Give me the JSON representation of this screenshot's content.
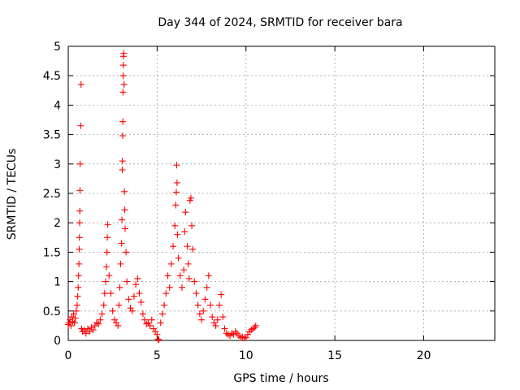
{
  "chart_data": {
    "type": "scatter",
    "title": "Day 344 of 2024, SRMTID for receiver bara",
    "xlabel": "GPS time / hours",
    "ylabel": "SRMTID / TECUs",
    "xlim": [
      0,
      24
    ],
    "ylim": [
      0,
      5
    ],
    "x_ticks": [
      0,
      5,
      10,
      15,
      20
    ],
    "y_ticks": [
      0,
      0.5,
      1,
      1.5,
      2,
      2.5,
      3,
      3.5,
      4,
      4.5,
      5
    ],
    "grid": true,
    "marker": "plus",
    "series": [
      {
        "name": "SRMTID",
        "color": "#ff0000",
        "points": [
          [
            0.0,
            0.27
          ],
          [
            0.05,
            0.3
          ],
          [
            0.1,
            0.35
          ],
          [
            0.15,
            0.25
          ],
          [
            0.2,
            0.4
          ],
          [
            0.25,
            0.32
          ],
          [
            0.3,
            0.45
          ],
          [
            0.35,
            0.3
          ],
          [
            0.4,
            0.38
          ],
          [
            0.45,
            0.5
          ],
          [
            0.5,
            0.6
          ],
          [
            0.53,
            0.75
          ],
          [
            0.56,
            0.9
          ],
          [
            0.58,
            1.1
          ],
          [
            0.6,
            1.3
          ],
          [
            0.62,
            1.55
          ],
          [
            0.63,
            1.75
          ],
          [
            0.64,
            2.0
          ],
          [
            0.65,
            2.2
          ],
          [
            0.66,
            2.55
          ],
          [
            0.67,
            3.0
          ],
          [
            0.7,
            3.65
          ],
          [
            0.72,
            4.35
          ],
          [
            0.75,
            0.2
          ],
          [
            0.8,
            0.15
          ],
          [
            0.9,
            0.18
          ],
          [
            1.0,
            0.12
          ],
          [
            1.1,
            0.2
          ],
          [
            1.2,
            0.15
          ],
          [
            1.3,
            0.22
          ],
          [
            1.4,
            0.18
          ],
          [
            1.5,
            0.25
          ],
          [
            1.6,
            0.3
          ],
          [
            1.7,
            0.28
          ],
          [
            1.8,
            0.35
          ],
          [
            1.9,
            0.45
          ],
          [
            2.0,
            0.6
          ],
          [
            2.05,
            0.8
          ],
          [
            2.1,
            1.0
          ],
          [
            2.15,
            1.25
          ],
          [
            2.18,
            1.5
          ],
          [
            2.2,
            1.75
          ],
          [
            2.22,
            1.97
          ],
          [
            2.3,
            1.1
          ],
          [
            2.4,
            0.8
          ],
          [
            2.5,
            0.5
          ],
          [
            2.6,
            0.35
          ],
          [
            2.7,
            0.3
          ],
          [
            2.8,
            0.25
          ],
          [
            2.85,
            0.6
          ],
          [
            2.9,
            0.9
          ],
          [
            2.95,
            1.3
          ],
          [
            3.0,
            1.65
          ],
          [
            3.02,
            2.05
          ],
          [
            3.04,
            2.9
          ],
          [
            3.05,
            3.05
          ],
          [
            3.06,
            3.48
          ],
          [
            3.07,
            3.72
          ],
          [
            3.08,
            4.22
          ],
          [
            3.09,
            4.5
          ],
          [
            3.1,
            4.68
          ],
          [
            3.11,
            4.83
          ],
          [
            3.12,
            4.88
          ],
          [
            3.14,
            4.35
          ],
          [
            3.16,
            2.53
          ],
          [
            3.18,
            2.22
          ],
          [
            3.2,
            1.9
          ],
          [
            3.25,
            1.5
          ],
          [
            3.3,
            1.0
          ],
          [
            3.4,
            0.7
          ],
          [
            3.5,
            0.55
          ],
          [
            3.6,
            0.5
          ],
          [
            3.7,
            0.75
          ],
          [
            3.8,
            0.95
          ],
          [
            3.9,
            1.05
          ],
          [
            4.0,
            0.8
          ],
          [
            4.1,
            0.65
          ],
          [
            4.2,
            0.45
          ],
          [
            4.3,
            0.35
          ],
          [
            4.4,
            0.28
          ],
          [
            4.5,
            0.3
          ],
          [
            4.6,
            0.25
          ],
          [
            4.7,
            0.35
          ],
          [
            4.8,
            0.2
          ],
          [
            4.9,
            0.15
          ],
          [
            5.0,
            0.1
          ],
          [
            5.05,
            0.02
          ],
          [
            5.1,
            0.01
          ],
          [
            5.2,
            0.3
          ],
          [
            5.3,
            0.45
          ],
          [
            5.4,
            0.6
          ],
          [
            5.5,
            0.8
          ],
          [
            5.6,
            1.1
          ],
          [
            5.7,
            0.9
          ],
          [
            5.8,
            1.3
          ],
          [
            5.9,
            1.6
          ],
          [
            6.0,
            1.95
          ],
          [
            6.05,
            2.3
          ],
          [
            6.08,
            2.52
          ],
          [
            6.1,
            2.98
          ],
          [
            6.12,
            2.68
          ],
          [
            6.15,
            1.8
          ],
          [
            6.2,
            1.4
          ],
          [
            6.3,
            1.1
          ],
          [
            6.4,
            0.9
          ],
          [
            6.5,
            1.2
          ],
          [
            6.55,
            1.85
          ],
          [
            6.6,
            2.18
          ],
          [
            6.7,
            1.6
          ],
          [
            6.75,
            1.3
          ],
          [
            6.8,
            1.05
          ],
          [
            6.85,
            2.38
          ],
          [
            6.9,
            2.42
          ],
          [
            6.95,
            1.95
          ],
          [
            7.0,
            1.55
          ],
          [
            7.1,
            1.0
          ],
          [
            7.2,
            0.8
          ],
          [
            7.3,
            0.6
          ],
          [
            7.4,
            0.45
          ],
          [
            7.5,
            0.35
          ],
          [
            7.6,
            0.5
          ],
          [
            7.7,
            0.7
          ],
          [
            7.8,
            0.9
          ],
          [
            7.9,
            1.1
          ],
          [
            8.0,
            0.6
          ],
          [
            8.1,
            0.4
          ],
          [
            8.2,
            0.3
          ],
          [
            8.3,
            0.25
          ],
          [
            8.4,
            0.35
          ],
          [
            8.5,
            0.6
          ],
          [
            8.6,
            0.78
          ],
          [
            8.7,
            0.4
          ],
          [
            8.8,
            0.2
          ],
          [
            8.9,
            0.12
          ],
          [
            9.0,
            0.1
          ],
          [
            9.1,
            0.08
          ],
          [
            9.2,
            0.12
          ],
          [
            9.3,
            0.1
          ],
          [
            9.4,
            0.15
          ],
          [
            9.5,
            0.12
          ],
          [
            9.6,
            0.08
          ],
          [
            9.7,
            0.05
          ],
          [
            9.8,
            0.06
          ],
          [
            9.9,
            0.04
          ],
          [
            10.0,
            0.05
          ],
          [
            10.1,
            0.1
          ],
          [
            10.2,
            0.15
          ],
          [
            10.3,
            0.18
          ],
          [
            10.4,
            0.2
          ],
          [
            10.5,
            0.22
          ],
          [
            10.55,
            0.25
          ]
        ]
      }
    ]
  }
}
